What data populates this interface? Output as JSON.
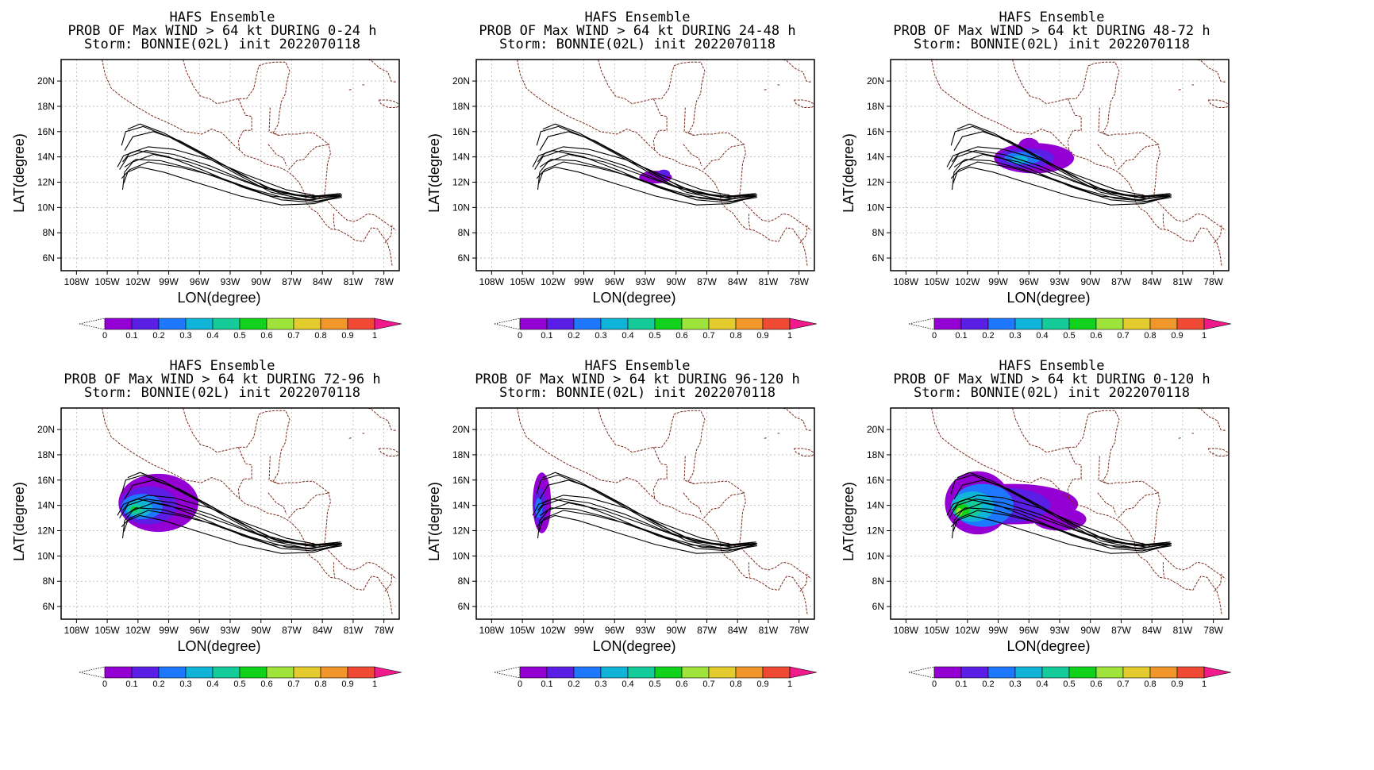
{
  "figure": {
    "common": {
      "title_line1": "HAFS Ensemble",
      "title_line3": "Storm: BONNIE(02L) init 2022070118",
      "xlabel": "LON(degree)",
      "ylabel": "LAT(degree)",
      "lon_ticks": [
        "108W",
        "105W",
        "102W",
        "99W",
        "96W",
        "93W",
        "90W",
        "87W",
        "84W",
        "81W",
        "78W"
      ],
      "lat_ticks": [
        "20N",
        "18N",
        "16N",
        "14N",
        "12N",
        "10N",
        "8N",
        "6N"
      ],
      "colorbar_labels": [
        "0",
        "0.1",
        "0.2",
        "0.3",
        "0.4",
        "0.5",
        "0.6",
        "0.7",
        "0.8",
        "0.9",
        "1"
      ],
      "colorbar_colors": [
        "#9400d3",
        "#5a1ee6",
        "#1e78ff",
        "#10b4d8",
        "#14cc9a",
        "#10d21a",
        "#9ee43a",
        "#e4cc2e",
        "#f0962a",
        "#f04a36",
        "#f01a8c"
      ],
      "lon_range_deg": [
        -109.5,
        -76.5
      ],
      "lat_range_deg": [
        5.0,
        21.7
      ],
      "coast_color": "#7a2b1d",
      "track_color": "#000000"
    },
    "panels": [
      {
        "title_line2": "PROB OF Max WIND > 64 kt DURING  0-24 h",
        "period": "0-24 h",
        "max_probability": 0.0
      },
      {
        "title_line2": "PROB OF Max WIND > 64 kt DURING 24-48 h",
        "period": "24-48 h",
        "max_probability": 0.1
      },
      {
        "title_line2": "PROB OF Max WIND > 64 kt DURING 48-72 h",
        "period": "48-72 h",
        "max_probability": 0.4
      },
      {
        "title_line2": "PROB OF Max WIND > 64 kt DURING 72-96 h",
        "period": "72-96 h",
        "max_probability": 0.6
      },
      {
        "title_line2": "PROB OF Max WIND > 64 kt DURING 96-120 h",
        "period": "96-120 h",
        "max_probability": 0.3
      },
      {
        "title_line2": "PROB OF Max WIND > 64 kt DURING 0-120 h",
        "period": "0-120 h",
        "max_probability": 0.7
      }
    ],
    "ensemble_tracks": [
      [
        [
          -82.1,
          11.0
        ],
        [
          -84.5,
          10.7
        ],
        [
          -87.0,
          11.0
        ],
        [
          -90.0,
          11.6
        ],
        [
          -93.5,
          12.6
        ],
        [
          -97.0,
          13.6
        ],
        [
          -100.5,
          14.2
        ],
        [
          -102.5,
          13.6
        ],
        [
          -103.3,
          12.8
        ],
        [
          -103.5,
          11.4
        ]
      ],
      [
        [
          -82.1,
          10.9
        ],
        [
          -84.5,
          10.5
        ],
        [
          -87.5,
          10.7
        ],
        [
          -91.0,
          11.5
        ],
        [
          -94.5,
          12.5
        ],
        [
          -98.0,
          13.2
        ],
        [
          -101.0,
          13.6
        ],
        [
          -102.8,
          13.0
        ],
        [
          -103.6,
          12.3
        ]
      ],
      [
        [
          -82.2,
          11.1
        ],
        [
          -84.8,
          10.9
        ],
        [
          -88.0,
          11.1
        ],
        [
          -91.5,
          12.1
        ],
        [
          -95.0,
          13.3
        ],
        [
          -98.5,
          14.2
        ],
        [
          -101.2,
          14.5
        ],
        [
          -103.0,
          14.0
        ],
        [
          -103.8,
          13.0
        ]
      ],
      [
        [
          -82.1,
          10.8
        ],
        [
          -85.0,
          10.4
        ],
        [
          -88.0,
          10.6
        ],
        [
          -91.8,
          11.6
        ],
        [
          -95.5,
          12.9
        ],
        [
          -99.0,
          14.0
        ],
        [
          -102.0,
          14.5
        ],
        [
          -103.4,
          14.1
        ],
        [
          -104.0,
          13.2
        ]
      ],
      [
        [
          -82.2,
          11.0
        ],
        [
          -85.0,
          10.8
        ],
        [
          -88.5,
          11.3
        ],
        [
          -92.0,
          12.6
        ],
        [
          -95.0,
          14.0
        ],
        [
          -98.0,
          15.3
        ],
        [
          -100.5,
          16.0
        ],
        [
          -102.5,
          15.6
        ],
        [
          -103.3,
          14.5
        ]
      ],
      [
        [
          -82.3,
          10.9
        ],
        [
          -85.5,
          10.6
        ],
        [
          -89.0,
          11.2
        ],
        [
          -92.5,
          12.7
        ],
        [
          -96.0,
          14.3
        ],
        [
          -99.0,
          15.6
        ],
        [
          -101.5,
          16.4
        ],
        [
          -103.2,
          16.0
        ],
        [
          -103.6,
          14.9
        ]
      ],
      [
        [
          -82.1,
          11.0
        ],
        [
          -84.5,
          10.9
        ],
        [
          -87.5,
          11.4
        ],
        [
          -91.5,
          12.6
        ],
        [
          -95.0,
          13.8
        ],
        [
          -98.5,
          14.6
        ],
        [
          -101.0,
          14.8
        ],
        [
          -102.8,
          14.3
        ],
        [
          -103.5,
          13.6
        ]
      ],
      [
        [
          -82.2,
          10.9
        ],
        [
          -84.8,
          10.3
        ],
        [
          -88.0,
          10.2
        ],
        [
          -92.0,
          10.9
        ],
        [
          -96.0,
          11.9
        ],
        [
          -99.5,
          12.8
        ],
        [
          -101.8,
          13.2
        ],
        [
          -103.0,
          12.8
        ],
        [
          -103.4,
          11.9
        ]
      ],
      [
        [
          -82.1,
          11.0
        ],
        [
          -85.0,
          10.6
        ],
        [
          -89.0,
          10.9
        ],
        [
          -93.0,
          12.0
        ],
        [
          -96.5,
          13.0
        ],
        [
          -99.8,
          13.7
        ],
        [
          -102.2,
          13.8
        ],
        [
          -103.3,
          13.2
        ]
      ],
      [
        [
          -82.2,
          11.1
        ],
        [
          -85.5,
          10.8
        ],
        [
          -89.5,
          11.6
        ],
        [
          -93.0,
          13.1
        ],
        [
          -96.5,
          14.6
        ],
        [
          -99.5,
          15.9
        ],
        [
          -101.8,
          16.6
        ],
        [
          -103.0,
          16.2
        ]
      ]
    ],
    "probability_blobs": [
      [],
      [
        {
          "lon": -92.0,
          "lat": 12.4,
          "rlon": 1.6,
          "rlat": 0.5,
          "p": 0.05
        },
        {
          "lon": -91.2,
          "lat": 12.7,
          "rlon": 0.6,
          "rlat": 0.3,
          "p": 0.1
        }
      ],
      [
        {
          "lon": -95.5,
          "lat": 13.9,
          "rlon": 3.9,
          "rlat": 1.2,
          "p": 0.05
        },
        {
          "lon": -96.0,
          "lat": 14.9,
          "rlon": 1.0,
          "rlat": 0.6,
          "p": 0.05
        },
        {
          "lon": -96.3,
          "lat": 13.9,
          "rlon": 2.8,
          "rlat": 0.8,
          "p": 0.15
        },
        {
          "lon": -96.6,
          "lat": 13.9,
          "rlon": 1.8,
          "rlat": 0.5,
          "p": 0.25
        },
        {
          "lon": -96.9,
          "lat": 13.8,
          "rlon": 0.8,
          "rlat": 0.3,
          "p": 0.35
        }
      ],
      [
        {
          "lon": -100.0,
          "lat": 14.2,
          "rlon": 3.9,
          "rlat": 2.3,
          "p": 0.05
        },
        {
          "lon": -101.0,
          "lat": 14.0,
          "rlon": 2.8,
          "rlat": 1.5,
          "p": 0.15
        },
        {
          "lon": -101.6,
          "lat": 13.9,
          "rlon": 2.0,
          "rlat": 1.0,
          "p": 0.25
        },
        {
          "lon": -101.9,
          "lat": 13.8,
          "rlon": 1.3,
          "rlat": 0.7,
          "p": 0.35
        },
        {
          "lon": -102.2,
          "lat": 13.7,
          "rlon": 0.7,
          "rlat": 0.4,
          "p": 0.45
        },
        {
          "lon": -102.4,
          "lat": 13.7,
          "rlon": 0.3,
          "rlat": 0.2,
          "p": 0.55
        }
      ],
      [
        {
          "lon": -103.1,
          "lat": 14.2,
          "rlon": 0.9,
          "rlat": 2.4,
          "p": 0.05
        },
        {
          "lon": -103.3,
          "lat": 13.9,
          "rlon": 0.6,
          "rlat": 1.5,
          "p": 0.15
        },
        {
          "lon": -103.4,
          "lat": 13.8,
          "rlon": 0.35,
          "rlat": 0.8,
          "p": 0.25
        }
      ],
      [
        {
          "lon": -97.5,
          "lat": 14.1,
          "rlon": 6.3,
          "rlat": 1.6,
          "p": 0.05
        },
        {
          "lon": -101.0,
          "lat": 14.2,
          "rlon": 3.2,
          "rlat": 2.5,
          "p": 0.05
        },
        {
          "lon": -93.0,
          "lat": 12.9,
          "rlon": 2.6,
          "rlat": 0.9,
          "p": 0.05
        },
        {
          "lon": -98.5,
          "lat": 14.0,
          "rlon": 4.6,
          "rlat": 1.4,
          "p": 0.15
        },
        {
          "lon": -100.5,
          "lat": 14.0,
          "rlon": 3.0,
          "rlat": 1.7,
          "p": 0.25
        },
        {
          "lon": -101.5,
          "lat": 13.9,
          "rlon": 2.1,
          "rlat": 1.2,
          "p": 0.35
        },
        {
          "lon": -102.0,
          "lat": 13.8,
          "rlon": 1.4,
          "rlat": 0.8,
          "p": 0.45
        },
        {
          "lon": -102.5,
          "lat": 13.6,
          "rlon": 0.7,
          "rlat": 0.5,
          "p": 0.55
        },
        {
          "lon": -102.8,
          "lat": 13.5,
          "rlon": 0.3,
          "rlat": 0.3,
          "p": 0.65
        }
      ]
    ]
  }
}
